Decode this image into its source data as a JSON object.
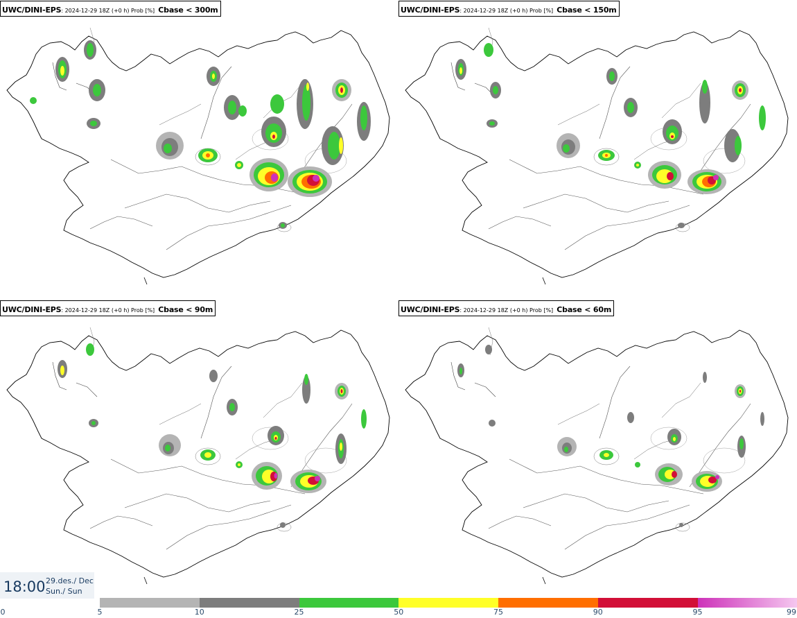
{
  "panels": [
    {
      "model": "UWC/DINI-EPS",
      "meta": "2024-12-29 18Z (+0 h) Prob [%]",
      "variable": "Cbase < 300m"
    },
    {
      "model": "UWC/DINI-EPS",
      "meta": "2024-12-29 18Z (+0 h) Prob [%]",
      "variable": "Cbase < 150m"
    },
    {
      "model": "UWC/DINI-EPS",
      "meta": "2024-12-29 18Z (+0 h) Prob [%]",
      "variable": "Cbase < 90m"
    },
    {
      "model": "UWC/DINI-EPS",
      "meta": "2024-12-29 18Z (+0 h) Prob [%]",
      "variable": "Cbase < 60m"
    }
  ],
  "time": {
    "clock": "18:00",
    "date": "29.des./ Dec",
    "day": "Sun./ Sun"
  },
  "colorbar": {
    "ticks": [
      "0",
      "5",
      "10",
      "25",
      "50",
      "75",
      "90",
      "95",
      "99"
    ],
    "segments": [
      {
        "from": "5",
        "to": "10",
        "color": "#b4b4b4"
      },
      {
        "from": "10",
        "to": "25",
        "color": "#7d7d7d"
      },
      {
        "from": "25",
        "to": "50",
        "color": "#3cc83c"
      },
      {
        "from": "50",
        "to": "75",
        "color": "#ffff28"
      },
      {
        "from": "75",
        "to": "90",
        "color": "#ff6e00"
      },
      {
        "from": "90",
        "to": "95",
        "color": "#d20f37"
      },
      {
        "from": "95",
        "to": "99",
        "color": "#cd32b9",
        "color_end": "#f5c8f0"
      }
    ]
  },
  "colors": {
    "gray_light": "#b4b4b4",
    "gray_dark": "#7d7d7d",
    "green": "#3cc83c",
    "yellow": "#ffff28",
    "orange": "#ff6e00",
    "red": "#d20f37",
    "magenta": "#cd32b9",
    "coast": "#000000",
    "roads": "#444444"
  }
}
